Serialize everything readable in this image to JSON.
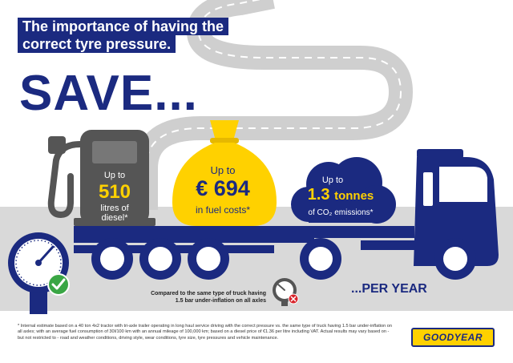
{
  "title": {
    "line1": "The importance of having the",
    "line2": "correct tyre pressure."
  },
  "headline": "SAVE...",
  "fuel": {
    "prefix": "Up to",
    "value": "510",
    "unit_line1": "litres of",
    "unit_line2": "diesel*"
  },
  "cost": {
    "prefix": "Up to",
    "value": "€ 694",
    "unit": "in fuel costs*"
  },
  "emissions": {
    "prefix": "Up to",
    "value": "1.3",
    "value_unit": "tonnes",
    "unit": "of CO₂ emissions*"
  },
  "comparison": {
    "line1": "Compared to the same type of truck having",
    "line2": "1.5 bar under-inflation on all axles"
  },
  "per_year": "...PER YEAR",
  "footnote": "* Internal estimate based on a 40 ton 4x2 tractor with tri-axle trailer operating in long haul service driving with the correct pressure vs. the same type of truck having 1.5 bar under-inflation on all axles; with an average fuel consumption of 30l/100 km with an annual mileage of 100,000 km; based on a diesel price of €1.36 per litre including VAT. Actual results may vary based on - but not restricted to - road and weather conditions, driving style, wear conditions, tyre size, tyre pressures and vehicle maintenance.",
  "logo": "GOODYEAR",
  "colors": {
    "brand_blue": "#1b2a80",
    "brand_yellow": "#ffd100",
    "road_grey": "#d9d9d9",
    "pump_grey": "#555555",
    "check_green": "#3aa645",
    "cross_red": "#d8232a"
  },
  "icons": [
    "road-icon",
    "fuel-pump-icon",
    "money-bag-icon",
    "cloud-icon",
    "truck-icon",
    "pressure-gauge-icon",
    "check-icon",
    "gauge-cross-icon"
  ]
}
